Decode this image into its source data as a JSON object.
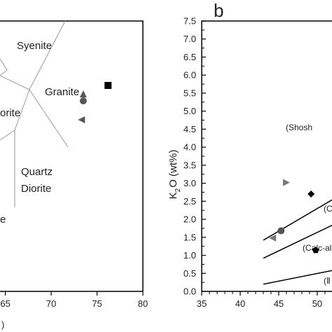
{
  "chart_data": [
    {
      "type": "scatter",
      "panel_label": "",
      "xlabel": "",
      "x_ticks": [
        65,
        70,
        75,
        80
      ],
      "xlim": [
        61,
        80
      ],
      "xlabel_fragment": ")",
      "field_labels": [
        "Syenite",
        "Granite",
        "orite",
        "Quartz",
        "Diorite",
        "e"
      ],
      "points": [
        {
          "marker": "square",
          "x": 76.2,
          "color": "#000000"
        },
        {
          "marker": "triangle-up",
          "x": 73.5,
          "color": "#555555"
        },
        {
          "marker": "circle",
          "x": 73.5,
          "color": "#555555"
        },
        {
          "marker": "triangle-left",
          "x": 73.3,
          "color": "#555555"
        }
      ]
    },
    {
      "type": "scatter",
      "panel_label": "b",
      "xlabel": "",
      "ylabel_parts": [
        "K",
        "2",
        "O (wt%)"
      ],
      "x_ticks": [
        35,
        40,
        45,
        50
      ],
      "y_ticks": [
        "0.0",
        "0.5",
        "1.0",
        "1.5",
        "2.0",
        "2.5",
        "3.0",
        "3.5",
        "4.0",
        "4.5",
        "5.0",
        "5.5",
        "6.0",
        "6.5",
        "7.0",
        "7.5"
      ],
      "xlim": [
        35,
        56
      ],
      "ylim": [
        0,
        7.5
      ],
      "series_labels": [
        "(Shosh",
        "(C",
        "(Calc-al",
        "(Ⅱ"
      ],
      "boundary_lines": [
        {
          "points": [
            [
              43,
              1.42
            ],
            [
              56,
              3.05
            ]
          ]
        },
        {
          "points": [
            [
              43,
              0.92
            ],
            [
              56,
              2.25
            ]
          ]
        },
        {
          "points": [
            [
              43,
              0.2
            ],
            [
              56,
              0.75
            ]
          ]
        }
      ],
      "points": [
        {
          "marker": "triangle-right",
          "x": 46.0,
          "y": 3.02,
          "color": "#777777"
        },
        {
          "marker": "diamond",
          "x": 49.2,
          "y": 2.7,
          "color": "#000000"
        },
        {
          "marker": "circle",
          "x": 45.3,
          "y": 1.68,
          "color": "#555555"
        },
        {
          "marker": "triangle-left",
          "x": 44.2,
          "y": 1.48,
          "color": "#777777"
        },
        {
          "marker": "pentagon",
          "x": 49.8,
          "y": 1.14,
          "color": "#000000"
        }
      ]
    }
  ]
}
